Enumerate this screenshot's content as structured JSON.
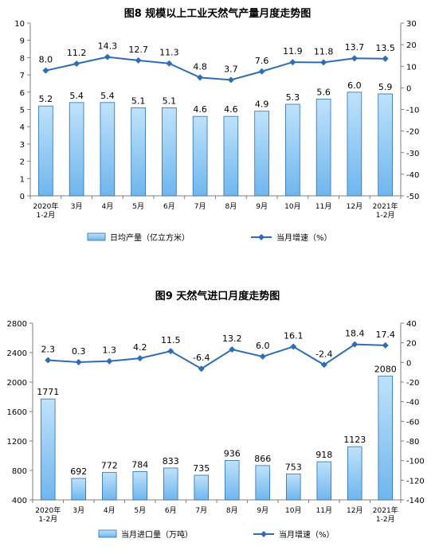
{
  "chart_data": [
    {
      "type": "bar",
      "title": "图8  规模以上工业天然气产量月度走势图",
      "categories": [
        "2020年\n1-2月",
        "3月",
        "4月",
        "5月",
        "6月",
        "7月",
        "8月",
        "9月",
        "10月",
        "11月",
        "12月",
        "2021年\n1-2月"
      ],
      "series": [
        {
          "name": "日均产量（亿立方米）",
          "type": "bar",
          "axis": "left",
          "values": [
            5.2,
            5.4,
            5.4,
            5.1,
            5.1,
            4.6,
            4.6,
            4.9,
            5.3,
            5.6,
            6.0,
            5.9
          ],
          "labels": [
            "5.2",
            "5.4",
            "5.4",
            "5.1",
            "5.1",
            "4.6",
            "4.6",
            "4.9",
            "5.3",
            "5.6",
            "6.0",
            "5.9"
          ]
        },
        {
          "name": "当月增速（%）",
          "type": "line",
          "axis": "right",
          "values": [
            8.0,
            11.2,
            14.3,
            12.7,
            11.3,
            4.8,
            3.7,
            7.6,
            11.9,
            11.8,
            13.7,
            13.5
          ],
          "labels": [
            "8.0",
            "11.2",
            "14.3",
            "12.7",
            "11.3",
            "4.8",
            "3.7",
            "7.6",
            "11.9",
            "11.8",
            "13.7",
            "13.5"
          ]
        }
      ],
      "ylim_left": [
        0,
        10
      ],
      "yticks_left": [
        "0",
        "1",
        "2",
        "3",
        "4",
        "5",
        "6",
        "7",
        "8",
        "9",
        "10"
      ],
      "ylim_right": [
        -50,
        30
      ],
      "yticks_right": [
        "-50",
        "-40",
        "-30",
        "-20",
        "-10",
        "0",
        "10",
        "20",
        "30"
      ],
      "legend_position": "bottom"
    },
    {
      "type": "bar",
      "title": "图9  天然气进口月度走势图",
      "categories": [
        "2020年\n1-2月",
        "3月",
        "4月",
        "5月",
        "6月",
        "7月",
        "8月",
        "9月",
        "10月",
        "11月",
        "12月",
        "2021年\n1-2月"
      ],
      "series": [
        {
          "name": "当月进口量（万吨）",
          "type": "bar",
          "axis": "left",
          "values": [
            1771,
            692,
            772,
            784,
            833,
            735,
            936,
            866,
            753,
            918,
            1123,
            2080
          ],
          "labels": [
            "1771",
            "692",
            "772",
            "784",
            "833",
            "735",
            "936",
            "866",
            "753",
            "918",
            "1123",
            "2080"
          ]
        },
        {
          "name": "当月增速（%）",
          "type": "line",
          "axis": "right",
          "values": [
            2.3,
            0.3,
            1.3,
            4.2,
            11.5,
            -6.4,
            13.2,
            6.0,
            16.1,
            -2.4,
            18.4,
            17.4
          ],
          "labels": [
            "2.3",
            "0.3",
            "1.3",
            "4.2",
            "11.5",
            "-6.4",
            "13.2",
            "6.0",
            "16.1",
            "-2.4",
            "18.4",
            "17.4"
          ]
        }
      ],
      "ylim_left": [
        400,
        2800
      ],
      "yticks_left": [
        "400",
        "800",
        "1200",
        "1600",
        "2000",
        "2400",
        "2800"
      ],
      "ylim_right": [
        -140,
        40
      ],
      "yticks_right": [
        "-140",
        "-120",
        "-100",
        "-80",
        "-60",
        "-40",
        "-20",
        "0",
        "20",
        "40"
      ],
      "legend_position": "bottom"
    }
  ],
  "colors": {
    "bar_fill_top": "#bfe2fb",
    "bar_fill_bottom": "#6fb6ee",
    "bar_stroke": "#2a6fb0",
    "line": "#2e6db4",
    "axis": "#7f7f7f",
    "text": "#000000"
  }
}
